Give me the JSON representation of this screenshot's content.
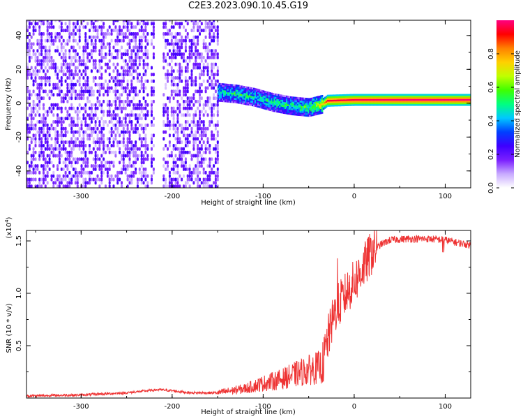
{
  "page": {
    "title": "C2E3.2023.090.10.45.G19"
  },
  "colorbar": {
    "label": "Normalized spectral amplitude",
    "ticks": [
      "0.0",
      "0.2",
      "0.4",
      "0.6",
      "0.8"
    ],
    "tick_values": [
      0.0,
      0.2,
      0.4,
      0.6,
      0.8
    ],
    "range": [
      0,
      1
    ],
    "colormap": [
      "#ffffff",
      "#c8aaff",
      "#7a1fff",
      "#3d00ff",
      "#0040ff",
      "#00c8ff",
      "#00ff80",
      "#40ff00",
      "#c0ff00",
      "#ffd000",
      "#ff8000",
      "#ff0000",
      "#ff0080"
    ]
  },
  "chart_data": [
    {
      "type": "heatmap",
      "title": "",
      "xlabel": "Height of straight line (km)",
      "ylabel": "Frequency (Hz)",
      "xlim": [
        -360,
        128
      ],
      "ylim": [
        -50,
        49
      ],
      "xticks": [
        -300,
        -200,
        -100,
        0,
        100
      ],
      "xtick_labels": [
        "-300",
        "-200",
        "-100",
        "0",
        "100"
      ],
      "yticks": [
        -40,
        -20,
        0,
        20,
        40
      ],
      "ytick_labels": [
        "-40",
        "-20",
        "0",
        "20",
        "40"
      ],
      "noise_region": {
        "x": [
          -360,
          -150
        ],
        "amplitude": [
          0.05,
          0.25
        ]
      },
      "ridge": [
        {
          "x": -150,
          "freq": 6.0,
          "amp": 0.45
        },
        {
          "x": -130,
          "freq": 5.0,
          "amp": 0.5
        },
        {
          "x": -110,
          "freq": 3.0,
          "amp": 0.45
        },
        {
          "x": -90,
          "freq": 0.0,
          "amp": 0.48
        },
        {
          "x": -70,
          "freq": -2.0,
          "amp": 0.5
        },
        {
          "x": -50,
          "freq": -3.0,
          "amp": 0.55
        },
        {
          "x": -35,
          "freq": -1.0,
          "amp": 0.75
        },
        {
          "x": -30,
          "freq": 1.0,
          "amp": 0.95
        },
        {
          "x": 0,
          "freq": 1.5,
          "amp": 0.97
        },
        {
          "x": 50,
          "freq": 1.5,
          "amp": 0.99
        },
        {
          "x": 128,
          "freq": 1.5,
          "amp": 0.99
        }
      ]
    },
    {
      "type": "line",
      "title": "",
      "xlabel": "Height of straight line (km)",
      "ylabel": "SNR (10 * v/v)",
      "scale_label": "(x10",
      "scale_exp": "4",
      "scale_close": ")",
      "xlim": [
        -360,
        128
      ],
      "ylim": [
        0.0,
        1.6
      ],
      "xticks": [
        -300,
        -200,
        -100,
        0,
        100
      ],
      "xtick_labels": [
        "-300",
        "-200",
        "-100",
        "0",
        "100"
      ],
      "yticks": [
        0.5,
        1.0,
        1.5
      ],
      "ytick_labels": [
        "0.5",
        "1.0",
        "1.5"
      ],
      "color": "#ee3333",
      "series": [
        {
          "x": [
            -360,
            -300,
            -250,
            -215,
            -200,
            -180,
            -150,
            -120,
            -100,
            -80,
            -60,
            -45,
            -35,
            -28,
            -20,
            -12,
            -5,
            0,
            10,
            20,
            30,
            40,
            60,
            80,
            100,
            115,
            128
          ],
          "y": [
            0.02,
            0.03,
            0.05,
            0.08,
            0.07,
            0.05,
            0.05,
            0.09,
            0.14,
            0.18,
            0.24,
            0.28,
            0.3,
            0.6,
            0.85,
            0.95,
            1.05,
            1.1,
            1.25,
            1.4,
            1.47,
            1.51,
            1.52,
            1.52,
            1.51,
            1.48,
            1.46
          ]
        }
      ]
    }
  ]
}
